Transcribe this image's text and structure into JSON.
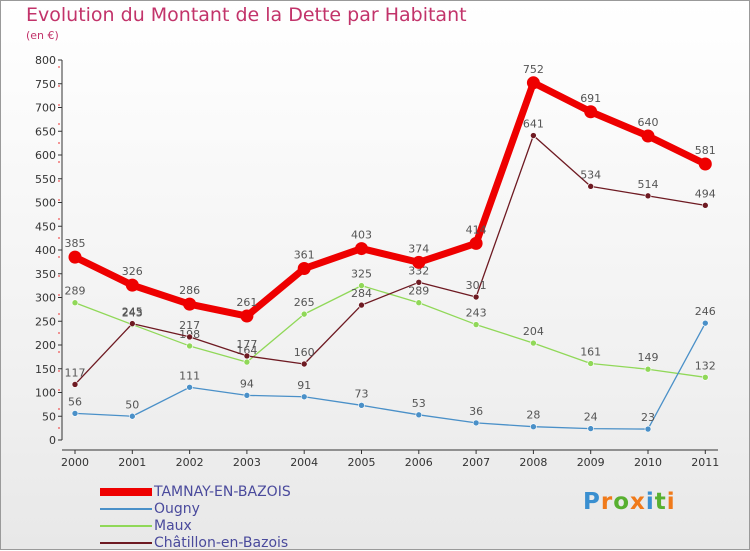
{
  "chart_data": {
    "type": "line",
    "title": "Evolution du Montant de la Dette par Habitant",
    "subtitle": "(en €)",
    "x": [
      "2000",
      "2001",
      "2002",
      "2003",
      "2004",
      "2005",
      "2006",
      "2007",
      "2008",
      "2009",
      "2010",
      "2011"
    ],
    "ylim": [
      0,
      800
    ],
    "yticks": [
      0,
      50,
      100,
      150,
      200,
      250,
      300,
      350,
      400,
      450,
      500,
      550,
      600,
      650,
      700,
      750,
      800
    ],
    "grid": false,
    "legend_position": "bottom-left",
    "series": [
      {
        "name": "TAMNAY-EN-BAZOIS",
        "color": "#ee0000",
        "values": [
          385,
          326,
          286,
          261,
          361,
          403,
          374,
          414,
          752,
          691,
          640,
          581
        ]
      },
      {
        "name": "Ougny",
        "color": "#4a90c8",
        "values": [
          56,
          50,
          111,
          94,
          91,
          73,
          53,
          36,
          28,
          24,
          23,
          246
        ]
      },
      {
        "name": "Maux",
        "color": "#90d858",
        "values": [
          289,
          243,
          198,
          164,
          265,
          325,
          289,
          243,
          204,
          161,
          149,
          132
        ]
      },
      {
        "name": "Châtillon-en-Bazois",
        "color": "#6e1a22",
        "values": [
          117,
          245,
          217,
          177,
          160,
          284,
          332,
          301,
          641,
          534,
          514,
          494
        ]
      }
    ]
  },
  "logo": {
    "text": "Proxiti"
  }
}
